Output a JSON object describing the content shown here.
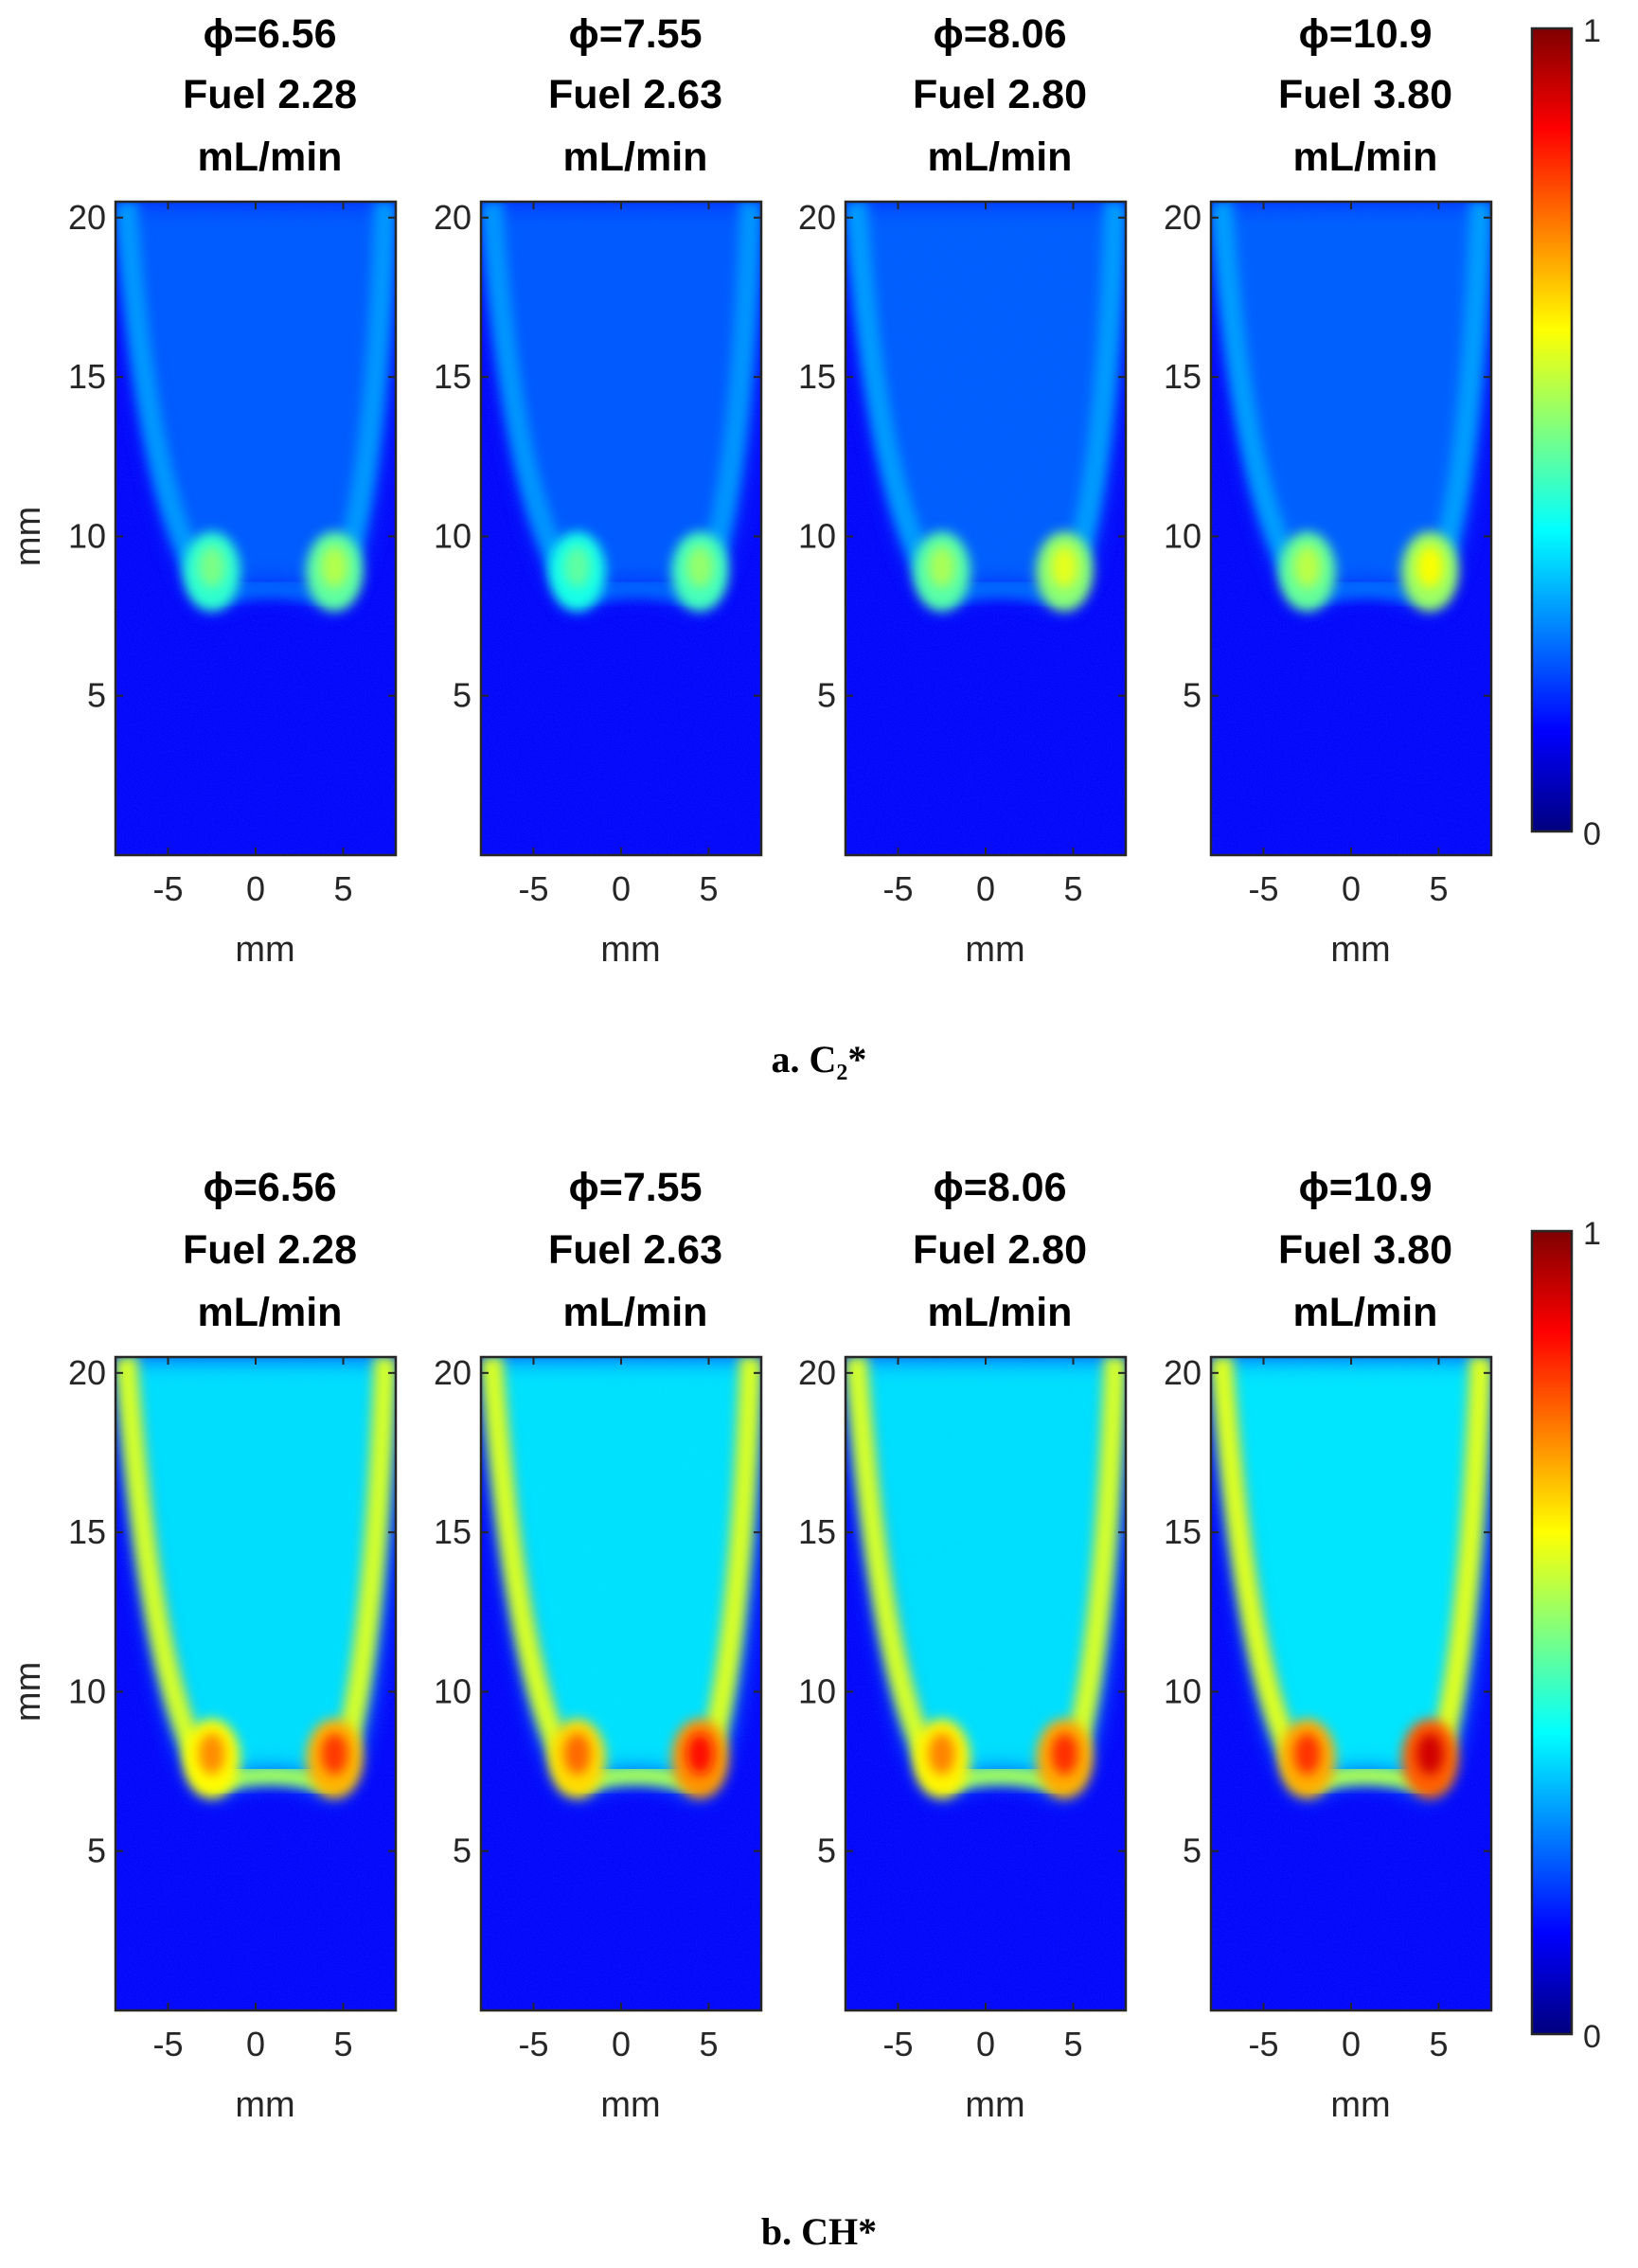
{
  "figure": {
    "panels": [
      {
        "caption": "a. C₂*",
        "species": "C2*",
        "colorbar": {
          "min_label": "0",
          "max_label": "1",
          "colormap": "jet"
        },
        "intensity_peak": 0.55,
        "subplots": [
          {
            "phi": "ϕ=6.56",
            "fuel": "Fuel 2.28",
            "unit": "mL/min",
            "relative_intensity": 0.55
          },
          {
            "phi": "ϕ=7.55",
            "fuel": "Fuel 2.63",
            "unit": "mL/min",
            "relative_intensity": 0.52
          },
          {
            "phi": "ϕ=8.06",
            "fuel": "Fuel 2.80",
            "unit": "mL/min",
            "relative_intensity": 0.6
          },
          {
            "phi": "ϕ=10.9",
            "fuel": "Fuel 3.80",
            "unit": "mL/min",
            "relative_intensity": 0.62
          }
        ]
      },
      {
        "caption": "b. CH*",
        "species": "CH*",
        "colorbar": {
          "min_label": "0",
          "max_label": "1",
          "colormap": "jet"
        },
        "intensity_peak": 0.85,
        "subplots": [
          {
            "phi": "ϕ=6.56",
            "fuel": "Fuel 2.28",
            "unit": "mL/min",
            "relative_intensity": 0.82
          },
          {
            "phi": "ϕ=7.55",
            "fuel": "Fuel 2.63",
            "unit": "mL/min",
            "relative_intensity": 0.86
          },
          {
            "phi": "ϕ=8.06",
            "fuel": "Fuel 2.80",
            "unit": "mL/min",
            "relative_intensity": 0.83
          },
          {
            "phi": "ϕ=10.9",
            "fuel": "Fuel 3.80",
            "unit": "mL/min",
            "relative_intensity": 0.92
          }
        ]
      }
    ]
  },
  "chart_data": [
    {
      "type": "heatmap",
      "title": "a. C2*",
      "xlabel": "mm",
      "ylabel": "mm",
      "xlim": [
        -8,
        8
      ],
      "ylim": [
        0,
        20.5
      ],
      "xticks": [
        -5,
        0,
        5
      ],
      "yticks": [
        5,
        10,
        15,
        20
      ],
      "xtick_labels": [
        "-5",
        "0",
        "5"
      ],
      "ytick_labels": [
        "5",
        "10",
        "15",
        "20"
      ],
      "colorbar_range": [
        0,
        1
      ],
      "flame_base_height_mm": 8,
      "peak_lobes_x_mm": [
        -2.5,
        4.5
      ],
      "series": [
        {
          "name": "ϕ=6.56, Fuel 2.28 mL/min",
          "peak_intensity": 0.55
        },
        {
          "name": "ϕ=7.55, Fuel 2.63 mL/min",
          "peak_intensity": 0.52
        },
        {
          "name": "ϕ=8.06, Fuel 2.80 mL/min",
          "peak_intensity": 0.6
        },
        {
          "name": "ϕ=10.9, Fuel 3.80 mL/min",
          "peak_intensity": 0.62
        }
      ]
    },
    {
      "type": "heatmap",
      "title": "b. CH*",
      "xlabel": "mm",
      "ylabel": "mm",
      "xlim": [
        -8,
        8
      ],
      "ylim": [
        0,
        20.5
      ],
      "xticks": [
        -5,
        0,
        5
      ],
      "yticks": [
        5,
        10,
        15,
        20
      ],
      "xtick_labels": [
        "-5",
        "0",
        "5"
      ],
      "ytick_labels": [
        "5",
        "10",
        "15",
        "20"
      ],
      "colorbar_range": [
        0,
        1
      ],
      "flame_base_height_mm": 7,
      "peak_lobes_x_mm": [
        -2.5,
        4.5
      ],
      "series": [
        {
          "name": "ϕ=6.56, Fuel 2.28 mL/min",
          "peak_intensity": 0.82
        },
        {
          "name": "ϕ=7.55, Fuel 2.63 mL/min",
          "peak_intensity": 0.86
        },
        {
          "name": "ϕ=8.06, Fuel 2.80 mL/min",
          "peak_intensity": 0.83
        },
        {
          "name": "ϕ=10.9, Fuel 3.80 mL/min",
          "peak_intensity": 0.92
        }
      ]
    }
  ]
}
